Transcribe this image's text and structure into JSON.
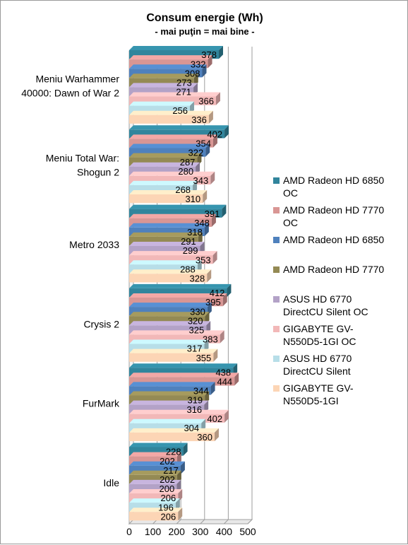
{
  "chart_data": {
    "type": "bar",
    "orientation": "horizontal",
    "style": "3d",
    "title": "Consum energie (Wh)",
    "subtitle": "- mai puţin = mai bine -",
    "categories": [
      "Meniu Warhammer 40000: Dawn of War 2",
      "Meniu Total War: Shogun 2",
      "Metro 2033",
      "Crysis 2",
      "FurMark",
      "Idle"
    ],
    "category_lines": [
      [
        "Meniu Warhammer",
        "40000: Dawn of War 2"
      ],
      [
        "Meniu Total War:",
        "Shogun 2"
      ],
      [
        "Metro 2033"
      ],
      [
        "Crysis 2"
      ],
      [
        "FurMark"
      ],
      [
        "Idle"
      ]
    ],
    "series": [
      {
        "name": "AMD Radeon HD 6850 OC",
        "legend_lines": [
          "AMD Radeon HD 6850",
          "OC"
        ],
        "color": "#31859c",
        "values": [
          378,
          402,
          391,
          412,
          438,
          228
        ]
      },
      {
        "name": "AMD Radeon HD 7770 OC",
        "legend_lines": [
          "AMD Radeon HD 7770",
          "OC"
        ],
        "color": "#d99694",
        "values": [
          332,
          354,
          348,
          395,
          444,
          202
        ]
      },
      {
        "name": "AMD Radeon HD 6850",
        "legend_lines": [
          "AMD Radeon HD 6850"
        ],
        "color": "#4f81bd",
        "values": [
          308,
          322,
          318,
          330,
          344,
          217
        ]
      },
      {
        "name": "AMD Radeon HD 7770",
        "legend_lines": [
          "AMD Radeon HD 7770"
        ],
        "color": "#948a54",
        "values": [
          273,
          287,
          291,
          320,
          319,
          202
        ]
      },
      {
        "name": "ASUS HD 6770 DirectCU Silent OC",
        "legend_lines": [
          "ASUS HD 6770",
          "DirectCU Silent OC"
        ],
        "color": "#b3a2c7",
        "values": [
          271,
          280,
          299,
          325,
          316,
          200
        ]
      },
      {
        "name": "GIGABYTE GV-N550D5-1GI OC",
        "legend_lines": [
          "GIGABYTE GV-",
          "N550D5-1GI OC"
        ],
        "color": "#f2b8b8",
        "values": [
          366,
          343,
          353,
          383,
          402,
          206
        ]
      },
      {
        "name": "ASUS HD 6770 DirectCU Silent",
        "legend_lines": [
          "ASUS HD 6770",
          "DirectCU Silent"
        ],
        "color": "#b7dee8",
        "values": [
          256,
          268,
          288,
          317,
          304,
          196
        ]
      },
      {
        "name": "GIGABYTE GV-N550D5-1GI",
        "legend_lines": [
          "GIGABYTE GV-",
          "N550D5-1GI"
        ],
        "color": "#fcd5b5",
        "values": [
          336,
          310,
          328,
          355,
          360,
          206
        ]
      }
    ],
    "xlim": [
      0,
      500
    ],
    "x_ticks": [
      0,
      100,
      200,
      300,
      400,
      500
    ],
    "grid": true,
    "legend_position": "right"
  }
}
